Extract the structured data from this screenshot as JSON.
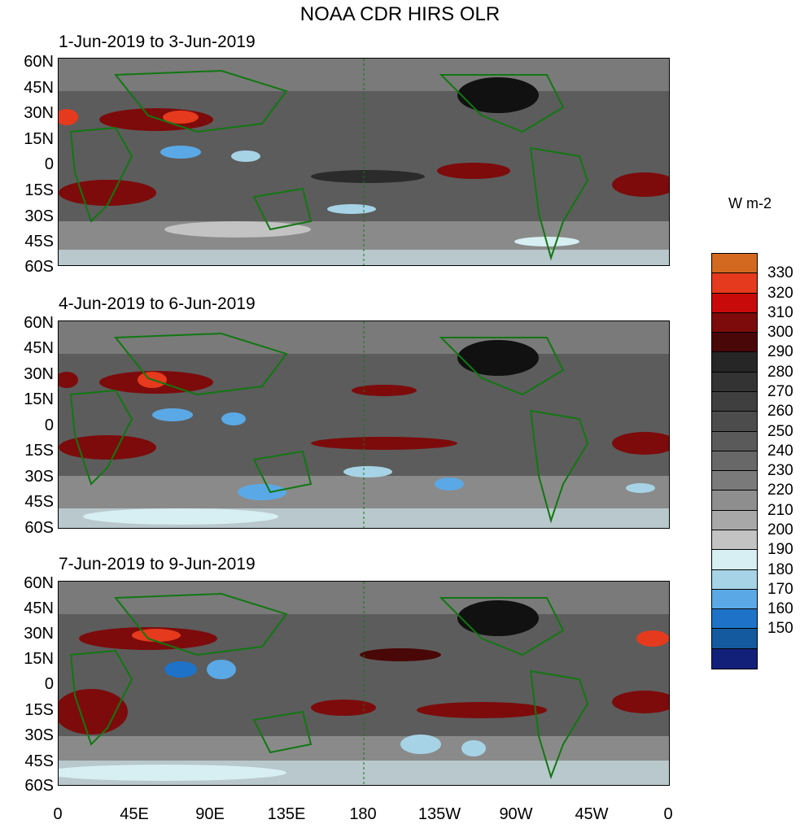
{
  "title": "NOAA CDR HIRS OLR",
  "panels": [
    {
      "label": "1-Jun-2019 to 3-Jun-2019"
    },
    {
      "label": "4-Jun-2019 to 6-Jun-2019"
    },
    {
      "label": "7-Jun-2019 to 9-Jun-2019"
    }
  ],
  "lat_ticks": [
    "60N",
    "45N",
    "30N",
    "15N",
    "0",
    "15S",
    "30S",
    "45S",
    "60S"
  ],
  "lon_ticks": [
    "0",
    "45E",
    "90E",
    "135E",
    "180",
    "135W",
    "90W",
    "45W",
    "0"
  ],
  "colorbar": {
    "units": "W m-2",
    "labels": [
      "330",
      "320",
      "310",
      "300",
      "290",
      "280",
      "270",
      "260",
      "250",
      "240",
      "230",
      "220",
      "210",
      "200",
      "190",
      "180",
      "170",
      "160",
      "150"
    ],
    "colors": [
      "#d2691e",
      "#e53a1d",
      "#c80a0a",
      "#7d0b0b",
      "#4a0707",
      "#262626",
      "#333333",
      "#3f3f3f",
      "#4c4c4c",
      "#5a5a5a",
      "#686868",
      "#7a7a7a",
      "#8e8e8e",
      "#a8a8a8",
      "#c3c3c3",
      "#d7eef2",
      "#a7d3e6",
      "#5aa9e6",
      "#1e73c8",
      "#135a9e",
      "#13207a"
    ]
  }
}
